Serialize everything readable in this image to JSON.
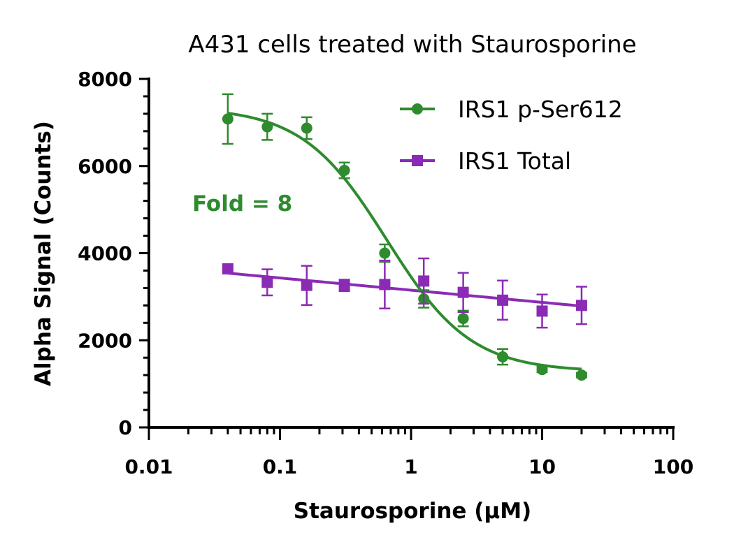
{
  "chart_data": {
    "type": "scatter",
    "title": "A431 cells treated with Staurosporine",
    "xlabel": "Staurosporine (µM)",
    "ylabel": "Alpha Signal (Counts)",
    "x_scale": "log",
    "xlim": [
      0.01,
      100
    ],
    "ylim": [
      0,
      8000
    ],
    "x_ticks": [
      "0.01",
      "0.1",
      "1",
      "10",
      "100"
    ],
    "y_ticks": [
      "0",
      "2000",
      "4000",
      "6000",
      "8000"
    ],
    "legend_position": "top-right",
    "annotation": "Fold = 8",
    "series": [
      {
        "name": "IRS1 p-Ser612",
        "color": "#2e8b2e",
        "marker": "circle",
        "x": [
          0.04,
          0.08,
          0.16,
          0.31,
          0.63,
          1.25,
          2.5,
          5,
          10,
          20
        ],
        "y": [
          7080,
          6900,
          6870,
          5900,
          4000,
          2950,
          2500,
          1620,
          1330,
          1200
        ],
        "error": [
          570,
          300,
          250,
          180,
          200,
          200,
          180,
          180,
          60,
          50
        ],
        "fit": "sigmoidal",
        "fit_params": {
          "top": 7350,
          "bottom": 1280,
          "ic50": 0.65,
          "hill": 1.35
        }
      },
      {
        "name": "IRS1 Total",
        "color": "#8b2bb5",
        "marker": "square",
        "x": [
          0.04,
          0.08,
          0.16,
          0.31,
          0.63,
          1.25,
          2.5,
          5,
          10,
          20
        ],
        "y": [
          3640,
          3330,
          3260,
          3260,
          3280,
          3360,
          3100,
          2920,
          2670,
          2800
        ],
        "error": [
          30,
          300,
          450,
          130,
          550,
          520,
          450,
          450,
          380,
          430
        ],
        "fit": "linear-log",
        "fit_params": {
          "slope": -280,
          "intercept": 3150
        }
      }
    ]
  }
}
